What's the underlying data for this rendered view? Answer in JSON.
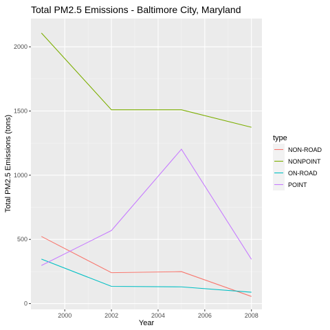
{
  "chart_data": {
    "type": "line",
    "title": "Total PM2.5 Emissions - Baltimore City, Maryland",
    "xlabel": "Year",
    "ylabel": "Total PM2.5 Emissions (tons)",
    "x": [
      1999,
      2002,
      2005,
      2008
    ],
    "xlim": [
      1998.55,
      2008.45
    ],
    "ylim": [
      -45,
      2220
    ],
    "xticks": [
      2000,
      2002,
      2004,
      2006,
      2008
    ],
    "yticks": [
      0,
      500,
      1000,
      1500,
      2000
    ],
    "grid": true,
    "legend": {
      "title": "type",
      "position": "right"
    },
    "series": [
      {
        "name": "NON-ROAD",
        "color": "#F8766D",
        "values": [
          522.94,
          240.85,
          248.93,
          55.82
        ]
      },
      {
        "name": "NONPOINT",
        "color": "#7CAE00",
        "values": [
          2107.63,
          1509.5,
          1509.5,
          1373.21
        ]
      },
      {
        "name": "ON-ROAD",
        "color": "#00BFC4",
        "values": [
          346.82,
          134.31,
          130.43,
          88.28
        ]
      },
      {
        "name": "POINT",
        "color": "#C77CFF",
        "values": [
          296.8,
          569.26,
          1202.49,
          344.98
        ]
      }
    ]
  }
}
